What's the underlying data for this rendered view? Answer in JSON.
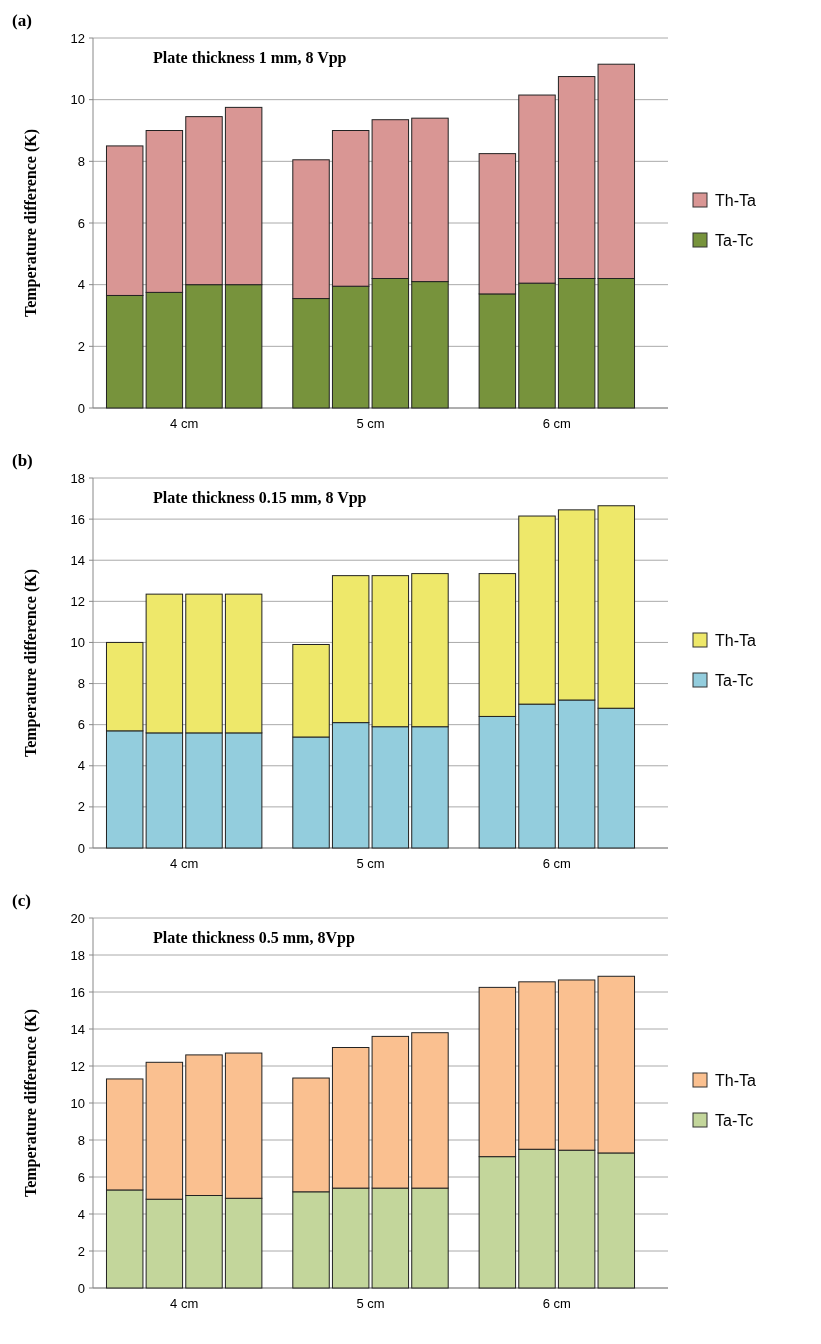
{
  "chart_data": [
    {
      "type": "bar",
      "title": "Plate thickness 1 mm, 8 Vpp",
      "ylabel": "Temperature difference (K)",
      "annotations": [
        "(a)",
        "4 cm",
        "5 cm",
        "6 cm"
      ],
      "categories": [
        null,
        null,
        null,
        null,
        null,
        null,
        null,
        null,
        null,
        null,
        null,
        null
      ],
      "stacked": true,
      "ylim": [
        0,
        12
      ],
      "yticks": [
        0,
        2,
        4,
        6,
        8,
        10,
        12
      ],
      "grid": "y",
      "legend": "right",
      "series": [
        {
          "name": "Ta-Tc",
          "color": "#77933c",
          "values": [
            3.65,
            3.75,
            4.0,
            4.0,
            3.55,
            3.95,
            4.2,
            4.1,
            3.7,
            4.05,
            4.2,
            4.2
          ]
        },
        {
          "name": "Th-Ta",
          "color": "#d99694",
          "values": [
            4.85,
            5.25,
            5.45,
            5.75,
            4.5,
            5.05,
            5.15,
            5.3,
            4.55,
            6.1,
            6.55,
            6.95
          ]
        }
      ]
    },
    {
      "type": "bar",
      "title": "Plate thickness 0.15 mm, 8 Vpp",
      "ylabel": "Temperature difference (K)",
      "annotations": [
        "(b)",
        "4 cm",
        "5 cm",
        "6 cm"
      ],
      "categories": [
        null,
        null,
        null,
        null,
        null,
        null,
        null,
        null,
        null,
        null,
        null,
        null
      ],
      "stacked": true,
      "ylim": [
        0,
        18
      ],
      "yticks": [
        0,
        2,
        4,
        6,
        8,
        10,
        12,
        14,
        16,
        18
      ],
      "grid": "y",
      "legend": "right",
      "series": [
        {
          "name": "Ta-Tc",
          "color": "#93cddd",
          "values": [
            5.7,
            5.6,
            5.6,
            5.6,
            5.4,
            6.1,
            5.9,
            5.9,
            6.4,
            7.0,
            7.2,
            6.8
          ]
        },
        {
          "name": "Th-Ta",
          "color": "#eee86a",
          "values": [
            4.3,
            6.75,
            6.75,
            6.75,
            4.5,
            7.15,
            7.35,
            7.45,
            6.95,
            9.15,
            9.25,
            9.85
          ]
        }
      ]
    },
    {
      "type": "bar",
      "title": "Plate thickness 0.5 mm, 8Vpp",
      "ylabel": "Temperature difference (K)",
      "annotations": [
        "(c)",
        "4 cm",
        "5 cm",
        "6 cm"
      ],
      "categories": [
        null,
        null,
        null,
        null,
        null,
        null,
        null,
        null,
        null,
        null,
        null,
        null
      ],
      "stacked": true,
      "ylim": [
        0,
        20
      ],
      "yticks": [
        0,
        2,
        4,
        6,
        8,
        10,
        12,
        14,
        16,
        18,
        20
      ],
      "grid": "y",
      "legend": "right",
      "series": [
        {
          "name": "Ta-Tc",
          "color": "#c3d69b",
          "values": [
            5.3,
            4.8,
            5.0,
            4.85,
            5.2,
            5.4,
            5.4,
            5.4,
            7.1,
            7.5,
            7.45,
            7.3
          ]
        },
        {
          "name": "Th-Ta",
          "color": "#fac090",
          "values": [
            6.0,
            7.4,
            7.6,
            7.85,
            6.15,
            7.6,
            8.2,
            8.4,
            9.15,
            9.05,
            9.2,
            9.55
          ]
        }
      ]
    }
  ]
}
